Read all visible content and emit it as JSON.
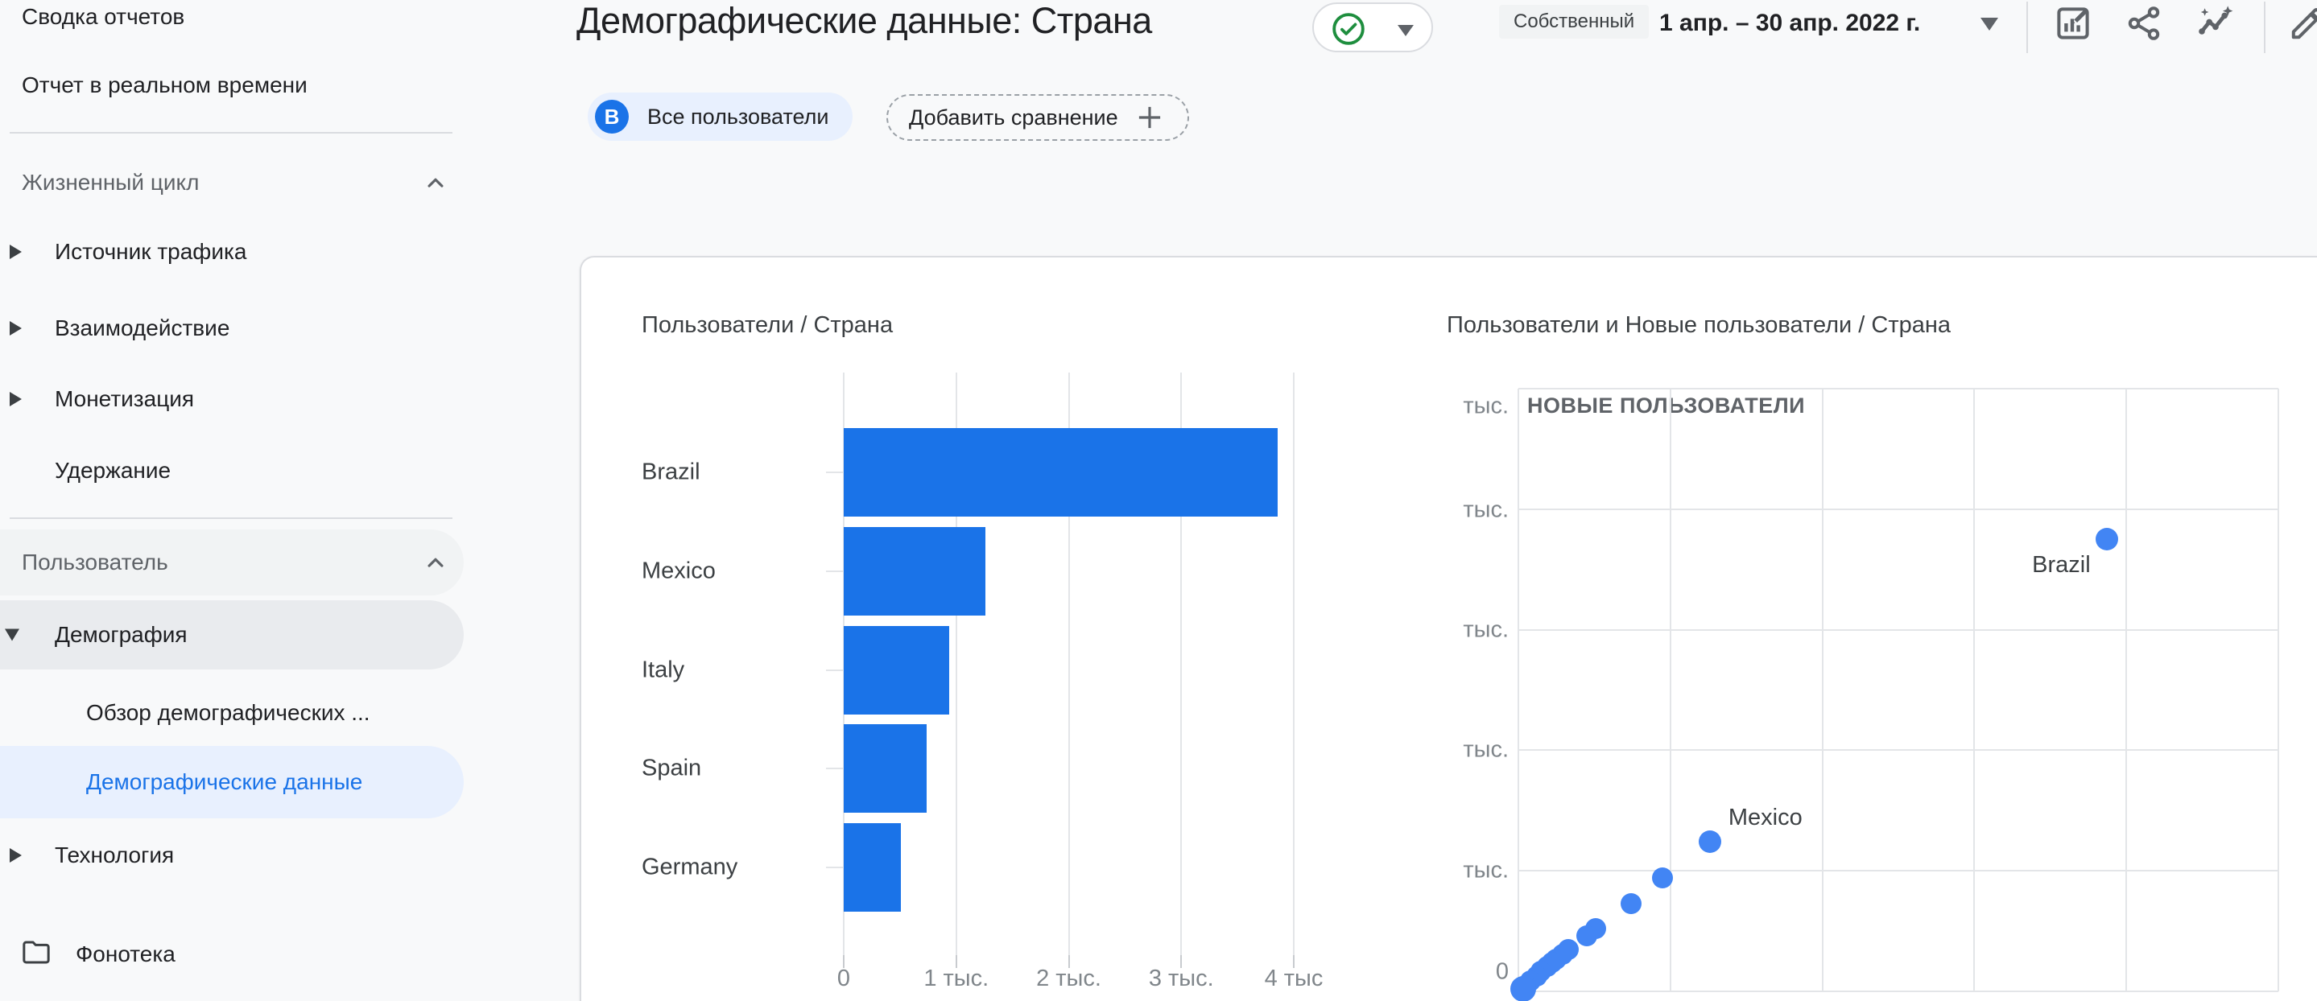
{
  "sidebar": {
    "items": [
      {
        "type": "item",
        "label": "Сводка отчетов",
        "indent": 0
      },
      {
        "type": "item",
        "label": "Отчет в реальном времени",
        "indent": 0
      },
      {
        "type": "divider"
      },
      {
        "type": "section-header",
        "label": "Жизненный цикл",
        "collapse_icon": "chevron-up-icon"
      },
      {
        "type": "item",
        "label": "Источник трафика",
        "indent": 1,
        "arrow": "right"
      },
      {
        "type": "item",
        "label": "Взаимодействие",
        "indent": 1,
        "arrow": "right"
      },
      {
        "type": "item",
        "label": "Монетизация",
        "indent": 1,
        "arrow": "right"
      },
      {
        "type": "item",
        "label": "Удержание",
        "indent": 1
      },
      {
        "type": "divider"
      },
      {
        "type": "section-header",
        "label": "Пользователь",
        "collapse_icon": "chevron-up-icon",
        "pill": true
      },
      {
        "type": "item",
        "label": "Демография",
        "indent": 1,
        "arrow": "down",
        "pill": true
      },
      {
        "type": "subitem",
        "label": "Обзор демографических ...",
        "indent": 2
      },
      {
        "type": "subitem",
        "label": "Демографические данные",
        "indent": 2,
        "selected": true
      },
      {
        "type": "item",
        "label": "Технология",
        "indent": 1,
        "arrow": "right"
      },
      {
        "type": "item",
        "label": "Фонотека",
        "indent": 1,
        "icon": "folder-icon"
      }
    ]
  },
  "header": {
    "title": "Демографические данные: Страна",
    "verified_badge_icon": "green-check-icon",
    "ownership_badge": "Собственный",
    "date_range": "1 апр. – 30 апр. 2022 г.",
    "toolbar_icons": [
      "customize-report-icon",
      "share-icon",
      "insights-icon",
      "edit-icon"
    ]
  },
  "chips": {
    "all_users_avatar": "B",
    "all_users": "Все пользователи",
    "add_comparison": "Добавить сравнение"
  },
  "colors": {
    "bar_blue": "#1a73e8",
    "dot_blue": "#4285f4",
    "selected_bg": "#e8f0fe",
    "green_check": "#1e8e3e",
    "grid": "#e3e5e8"
  },
  "chart_data": [
    {
      "type": "bar",
      "orientation": "horizontal",
      "title": "Пользователи / Страна",
      "categories": [
        "Brazil",
        "Mexico",
        "Italy",
        "Spain",
        "Germany"
      ],
      "values": [
        3860,
        1260,
        940,
        740,
        510
      ],
      "x_tick_labels": [
        "0",
        "1 тыс.",
        "2 тыс.",
        "3 тыс.",
        "4 тыс"
      ],
      "xlim": [
        0,
        4300
      ],
      "grid": true
    },
    {
      "type": "scatter",
      "title": "Пользователи и Новые пользователи / Страна",
      "inner_axis_label": "НОВЫЕ ПОЛЬЗОВАТЕЛИ",
      "y_tick_labels": [
        "тыс.",
        "тыс.",
        "тыс.",
        "тыс.",
        "тыс.",
        "0"
      ],
      "xlim": [
        0,
        5000
      ],
      "ylim": [
        0,
        5000
      ],
      "grid": true,
      "points": [
        {
          "label": "Brazil",
          "users": 3870,
          "new_users": 3750,
          "label_pos": "below-left",
          "size": "large"
        },
        {
          "label": "Mexico",
          "users": 1260,
          "new_users": 1240,
          "label_pos": "above-right",
          "size": "large"
        },
        {
          "users": 950,
          "new_users": 940
        },
        {
          "users": 740,
          "new_users": 730
        },
        {
          "users": 510,
          "new_users": 520
        },
        {
          "users": 450,
          "new_users": 460
        },
        {
          "users": 330,
          "new_users": 350
        },
        {
          "users": 290,
          "new_users": 310
        },
        {
          "users": 250,
          "new_users": 270
        },
        {
          "users": 220,
          "new_users": 240
        },
        {
          "users": 190,
          "new_users": 210
        },
        {
          "users": 150,
          "new_users": 170
        },
        {
          "users": 120,
          "new_users": 130
        },
        {
          "users": 80,
          "new_users": 90
        },
        {
          "users": 50,
          "new_users": 50
        },
        {
          "users": 30,
          "new_users": 20,
          "size": "xlarge"
        }
      ]
    }
  ]
}
